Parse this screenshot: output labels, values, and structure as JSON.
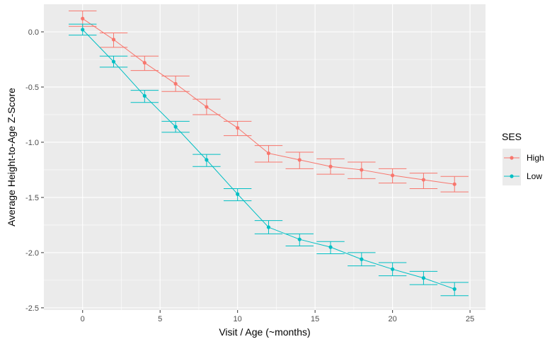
{
  "chart_data": {
    "type": "line",
    "title": "",
    "xlabel": "Visit / Age (~months)",
    "ylabel": "Average Height-to-Age Z-Score",
    "xlim": [
      -2.5,
      26
    ],
    "ylim": [
      -2.52,
      0.25
    ],
    "x_ticks": [
      0,
      5,
      10,
      15,
      20,
      25
    ],
    "y_ticks": [
      0.0,
      -0.5,
      -1.0,
      -1.5,
      -2.0,
      -2.5
    ],
    "x_tick_labels": [
      "0",
      "5",
      "10",
      "15",
      "20",
      "25"
    ],
    "y_tick_labels": [
      "0.0",
      "-0.5",
      "-1.0",
      "-1.5",
      "-2.0",
      "-2.5"
    ],
    "grid": true,
    "error_bars": true,
    "legend": {
      "title": "SES",
      "position": "right"
    },
    "colors": {
      "panel": "#ebebeb",
      "grid": "#ffffff"
    },
    "x": [
      0,
      2,
      4,
      6,
      8,
      10,
      12,
      14,
      16,
      18,
      20,
      22,
      24
    ],
    "series": [
      {
        "name": "High",
        "color": "#f8766d",
        "values": [
          0.12,
          -0.07,
          -0.28,
          -0.47,
          -0.68,
          -0.87,
          -1.1,
          -1.16,
          -1.22,
          -1.25,
          -1.3,
          -1.34,
          -1.38
        ],
        "lower": [
          0.05,
          -0.14,
          -0.35,
          -0.54,
          -0.75,
          -0.94,
          -1.18,
          -1.24,
          -1.29,
          -1.33,
          -1.37,
          -1.42,
          -1.45
        ],
        "upper": [
          0.19,
          -0.01,
          -0.22,
          -0.4,
          -0.61,
          -0.81,
          -1.03,
          -1.09,
          -1.15,
          -1.18,
          -1.24,
          -1.28,
          -1.31
        ]
      },
      {
        "name": "Low",
        "color": "#00bfc4",
        "values": [
          0.02,
          -0.27,
          -0.58,
          -0.86,
          -1.16,
          -1.47,
          -1.77,
          -1.88,
          -1.95,
          -2.06,
          -2.15,
          -2.23,
          -2.33
        ],
        "lower": [
          -0.03,
          -0.32,
          -0.64,
          -0.91,
          -1.22,
          -1.53,
          -1.83,
          -1.94,
          -2.01,
          -2.12,
          -2.21,
          -2.29,
          -2.39
        ],
        "upper": [
          0.07,
          -0.22,
          -0.53,
          -0.81,
          -1.11,
          -1.42,
          -1.71,
          -1.83,
          -1.9,
          -2.0,
          -2.09,
          -2.17,
          -2.27
        ]
      }
    ]
  }
}
